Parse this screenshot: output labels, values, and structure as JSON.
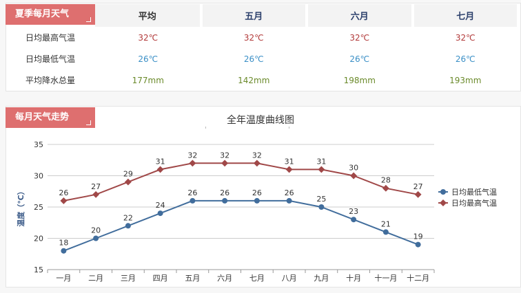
{
  "summary": {
    "tag": "夏季每月天气",
    "columns": [
      "平均",
      "五月",
      "六月",
      "七月"
    ],
    "rows": [
      {
        "label": "日均最高气温",
        "values": [
          "32℃",
          "32℃",
          "32℃",
          "32℃"
        ],
        "kind": "high"
      },
      {
        "label": "日均最低气温",
        "values": [
          "26℃",
          "26℃",
          "26℃",
          "26℃"
        ],
        "kind": "low"
      },
      {
        "label": "平均降水总量",
        "values": [
          "177mm",
          "142mm",
          "198mm",
          "193mm"
        ],
        "kind": "rain"
      }
    ]
  },
  "trend": {
    "tag": "每月天气走势"
  },
  "colors": {
    "high": "#a04848",
    "low": "#416d9c",
    "grid": "#cccccc",
    "tag": "#de6f6f"
  },
  "chart_data": {
    "type": "line",
    "title": "全年温度曲线图",
    "ylabel": "温度（℃）",
    "xlabel": "",
    "ylim": [
      15,
      35
    ],
    "yticks": [
      15,
      20,
      25,
      30,
      35
    ],
    "categories": [
      "一月",
      "二月",
      "三月",
      "四月",
      "五月",
      "六月",
      "七月",
      "八月",
      "九月",
      "十月",
      "十一月",
      "十二月"
    ],
    "series": [
      {
        "name": "日均最高气温",
        "values": [
          26,
          27,
          29,
          31,
          32,
          32,
          32,
          31,
          31,
          30,
          28,
          27
        ]
      },
      {
        "name": "日均最低气温",
        "values": [
          18,
          20,
          22,
          24,
          26,
          26,
          26,
          26,
          25,
          23,
          21,
          19
        ]
      }
    ],
    "legend": {
      "position": "right",
      "order": [
        "日均最低气温",
        "日均最高气温"
      ]
    }
  }
}
